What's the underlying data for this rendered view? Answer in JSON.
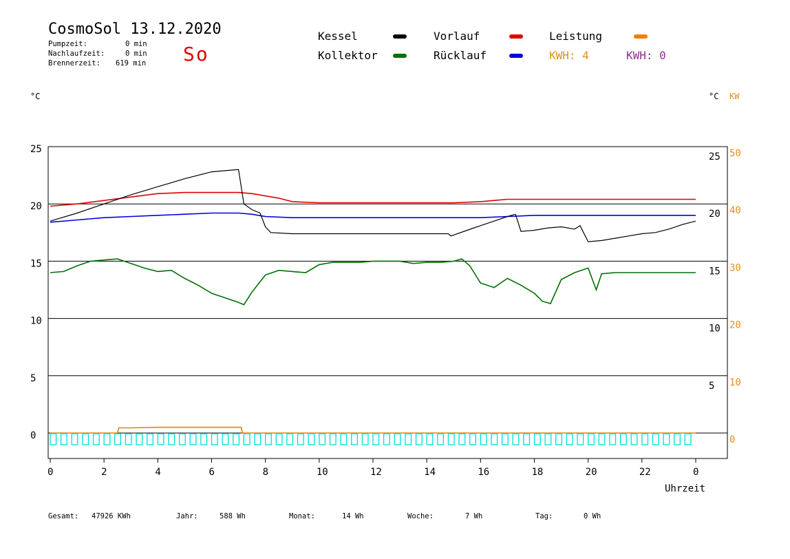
{
  "header": {
    "title": "CosmoSol 13.12.2020",
    "day": "So",
    "stats": [
      {
        "label": "Pumpzeit:",
        "value": "0 min"
      },
      {
        "label": "Nachlaufzeit:",
        "value": "0 min"
      },
      {
        "label": "Brennerzeit:",
        "value": "619 min"
      }
    ]
  },
  "legend": {
    "items": [
      {
        "name": "Kessel",
        "color": "#000000"
      },
      {
        "name": "Vorlauf",
        "color": "#e00000"
      },
      {
        "name": "Leistung",
        "color": "#f08000"
      },
      {
        "name": "Kollektor",
        "color": "#007000"
      },
      {
        "name": "Rücklauf",
        "color": "#0000e0"
      }
    ],
    "kwh_left": {
      "text": "KWH: 4",
      "color": "#e09020"
    },
    "kwh_right": {
      "text": "KWH: 0",
      "color": "#903090"
    }
  },
  "axes": {
    "left_unit": "°C",
    "right_unit_c": "°C",
    "right_unit_kw": "KW",
    "x_label": "Uhrzeit",
    "x_ticks": [
      "0",
      "2",
      "4",
      "6",
      "8",
      "10",
      "12",
      "14",
      "16",
      "18",
      "20",
      "22",
      "0"
    ],
    "left_ticks": [
      "25",
      "20",
      "15",
      "10",
      "5",
      "0"
    ],
    "right_inner_ticks": [
      "25",
      "20",
      "15",
      "10",
      "5"
    ],
    "right_kw_ticks": [
      "50",
      "40",
      "30",
      "20",
      "10",
      "0"
    ]
  },
  "footer": [
    {
      "label": "Gesamt:",
      "value": "47926 KWh"
    },
    {
      "label": "Jahr:",
      "value": "588 Wh"
    },
    {
      "label": "Monat:",
      "value": "14 Wh"
    },
    {
      "label": "Woche:",
      "value": "7 Wh"
    },
    {
      "label": "Tag:",
      "value": "0 Wh"
    }
  ],
  "chart_data": {
    "type": "line",
    "title": "CosmoSol 13.12.2020",
    "xlabel": "Uhrzeit",
    "ylabel": "°C",
    "xlim": [
      0,
      24
    ],
    "ylim": [
      0,
      25
    ],
    "grid": true,
    "series": [
      {
        "name": "Kessel",
        "color": "#000000",
        "x": [
          0,
          1,
          2,
          3,
          4,
          5,
          6,
          6.5,
          7,
          7.1,
          7.2,
          7.5,
          7.8,
          8,
          8.2,
          9,
          10,
          11,
          12,
          13,
          14,
          14.8,
          14.9,
          15.5,
          16,
          16.5,
          17,
          17.3,
          17.5,
          18,
          18.5,
          19,
          19.5,
          19.7,
          20,
          20.5,
          21,
          21.5,
          22,
          22.5,
          23,
          23.5,
          24
        ],
        "y": [
          18.5,
          19.2,
          20,
          20.8,
          21.5,
          22.2,
          22.8,
          22.9,
          23,
          21.5,
          20,
          19.5,
          19.2,
          18,
          17.5,
          17.4,
          17.4,
          17.4,
          17.4,
          17.4,
          17.4,
          17.4,
          17.2,
          17.7,
          18.1,
          18.5,
          18.9,
          19.1,
          17.6,
          17.7,
          17.9,
          18,
          17.8,
          18.1,
          16.7,
          16.8,
          17,
          17.2,
          17.4,
          17.5,
          17.8,
          18.2,
          18.5
        ]
      },
      {
        "name": "Vorlauf",
        "color": "#e00000",
        "x": [
          0,
          1,
          2,
          3,
          4,
          5,
          6,
          7,
          7.5,
          8,
          8.5,
          9,
          10,
          11,
          12,
          13,
          14,
          15,
          16,
          16.5,
          17,
          18,
          19,
          20,
          21,
          22,
          23,
          24
        ],
        "y": [
          19.8,
          20,
          20.3,
          20.6,
          20.9,
          21,
          21,
          21,
          20.9,
          20.7,
          20.5,
          20.2,
          20.1,
          20.1,
          20.1,
          20.1,
          20.1,
          20.1,
          20.2,
          20.3,
          20.4,
          20.4,
          20.4,
          20.4,
          20.4,
          20.4,
          20.4,
          20.4
        ]
      },
      {
        "name": "Rücklauf",
        "color": "#0000e0",
        "x": [
          0,
          1,
          2,
          3,
          4,
          5,
          6,
          7,
          7.5,
          8,
          9,
          10,
          12,
          14,
          16,
          17,
          18,
          19,
          20,
          21,
          22,
          23,
          24
        ],
        "y": [
          18.4,
          18.6,
          18.8,
          18.9,
          19,
          19.1,
          19.2,
          19.2,
          19.1,
          18.9,
          18.8,
          18.8,
          18.8,
          18.8,
          18.8,
          18.9,
          19,
          19,
          19,
          19,
          19,
          19,
          19
        ]
      },
      {
        "name": "Kollektor",
        "color": "#007000",
        "x": [
          0,
          0.5,
          1,
          1.5,
          2,
          2.5,
          3,
          3.5,
          4,
          4.5,
          5,
          5.5,
          6,
          6.5,
          7,
          7.2,
          7.5,
          8,
          8.5,
          9,
          9.5,
          10,
          10.5,
          11,
          11.5,
          12,
          12.5,
          13,
          13.5,
          14,
          14.5,
          15,
          15.3,
          15.6,
          16,
          16.5,
          17,
          17.5,
          18,
          18.3,
          18.6,
          19,
          19.5,
          20,
          20.3,
          20.5,
          21,
          21.5,
          22,
          22.5,
          23,
          23.5,
          24
        ],
        "y": [
          14,
          14.1,
          14.6,
          15,
          15.1,
          15.2,
          14.8,
          14.4,
          14.1,
          14.2,
          13.5,
          12.9,
          12.2,
          11.8,
          11.4,
          11.2,
          12.3,
          13.8,
          14.2,
          14.1,
          14,
          14.7,
          14.9,
          14.9,
          14.9,
          15,
          15,
          15,
          14.8,
          14.9,
          14.9,
          15,
          15.2,
          14.6,
          13.1,
          12.7,
          13.5,
          12.9,
          12.2,
          11.5,
          11.3,
          13.4,
          14,
          14.4,
          12.5,
          13.9,
          14,
          14,
          14,
          14,
          14,
          14,
          14
        ]
      },
      {
        "name": "Leistung",
        "color": "#f08000",
        "x": [
          0,
          2.5,
          2.55,
          3,
          4,
          5,
          6,
          7,
          7.1,
          7.15,
          24
        ],
        "y": [
          0,
          0,
          0.45,
          0.45,
          0.5,
          0.5,
          0.5,
          0.5,
          0.5,
          0,
          0
        ]
      }
    ],
    "pump_pattern": {
      "color": "#00dddd",
      "x_start": 0,
      "x_end": 24
    }
  }
}
